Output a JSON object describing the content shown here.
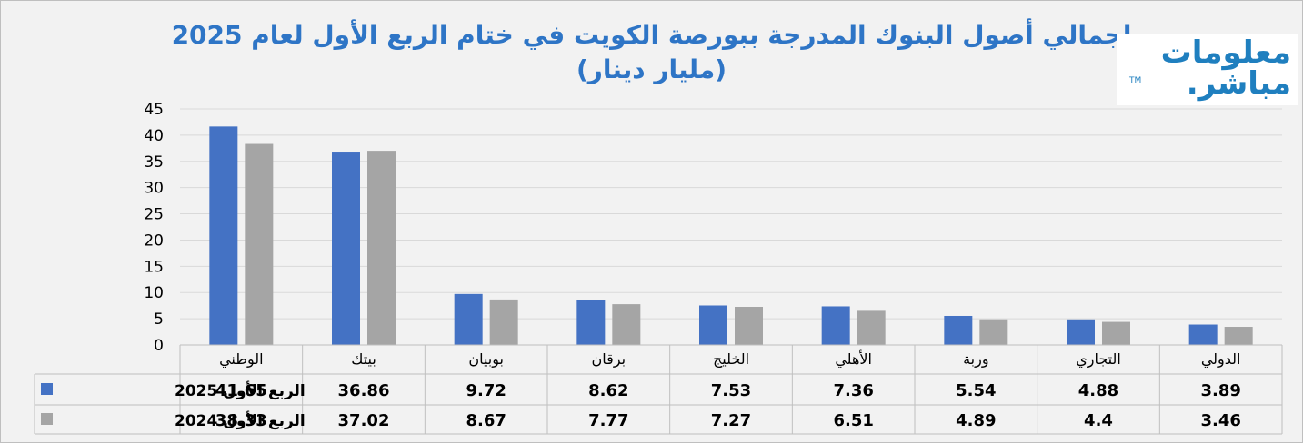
{
  "chart_data": {
    "type": "bar",
    "title": "إجمالي أصول البنوك المدرجة ببورصة الكويت في ختام الربع الأول لعام 2025",
    "subtitle": "(مليار دينار)",
    "categories": [
      "الوطني",
      "بيتك",
      "بوبيان",
      "برقان",
      "الخليج",
      "الأهلي",
      "وربة",
      "التجاري",
      "الدولي"
    ],
    "series": [
      {
        "name": "الربع الأول 2025",
        "color": "#4472c4",
        "values": [
          41.65,
          36.86,
          9.72,
          8.62,
          7.53,
          7.36,
          5.54,
          4.88,
          3.89
        ]
      },
      {
        "name": "الربع الأول 2024",
        "color": "#a5a5a5",
        "values": [
          38.33,
          37.02,
          8.67,
          7.77,
          7.27,
          6.51,
          4.89,
          4.4,
          3.46
        ]
      }
    ],
    "ylim": [
      0,
      45
    ],
    "yticks": [
      0,
      5,
      10,
      15,
      20,
      25,
      30,
      35,
      40,
      45
    ],
    "grid": true,
    "legend": "data-table",
    "value_labels": [
      [
        "41.65",
        "36.86",
        "9.72",
        "8.62",
        "7.53",
        "7.36",
        "5.54",
        "4.88",
        "3.89"
      ],
      [
        "38.33",
        "37.02",
        "8.67",
        "7.77",
        "7.27",
        "6.51",
        "4.89",
        "4.4",
        "3.46"
      ]
    ]
  },
  "logo": {
    "line1": "معلومات",
    "line2": "مباشر.",
    "tm": "TM"
  }
}
